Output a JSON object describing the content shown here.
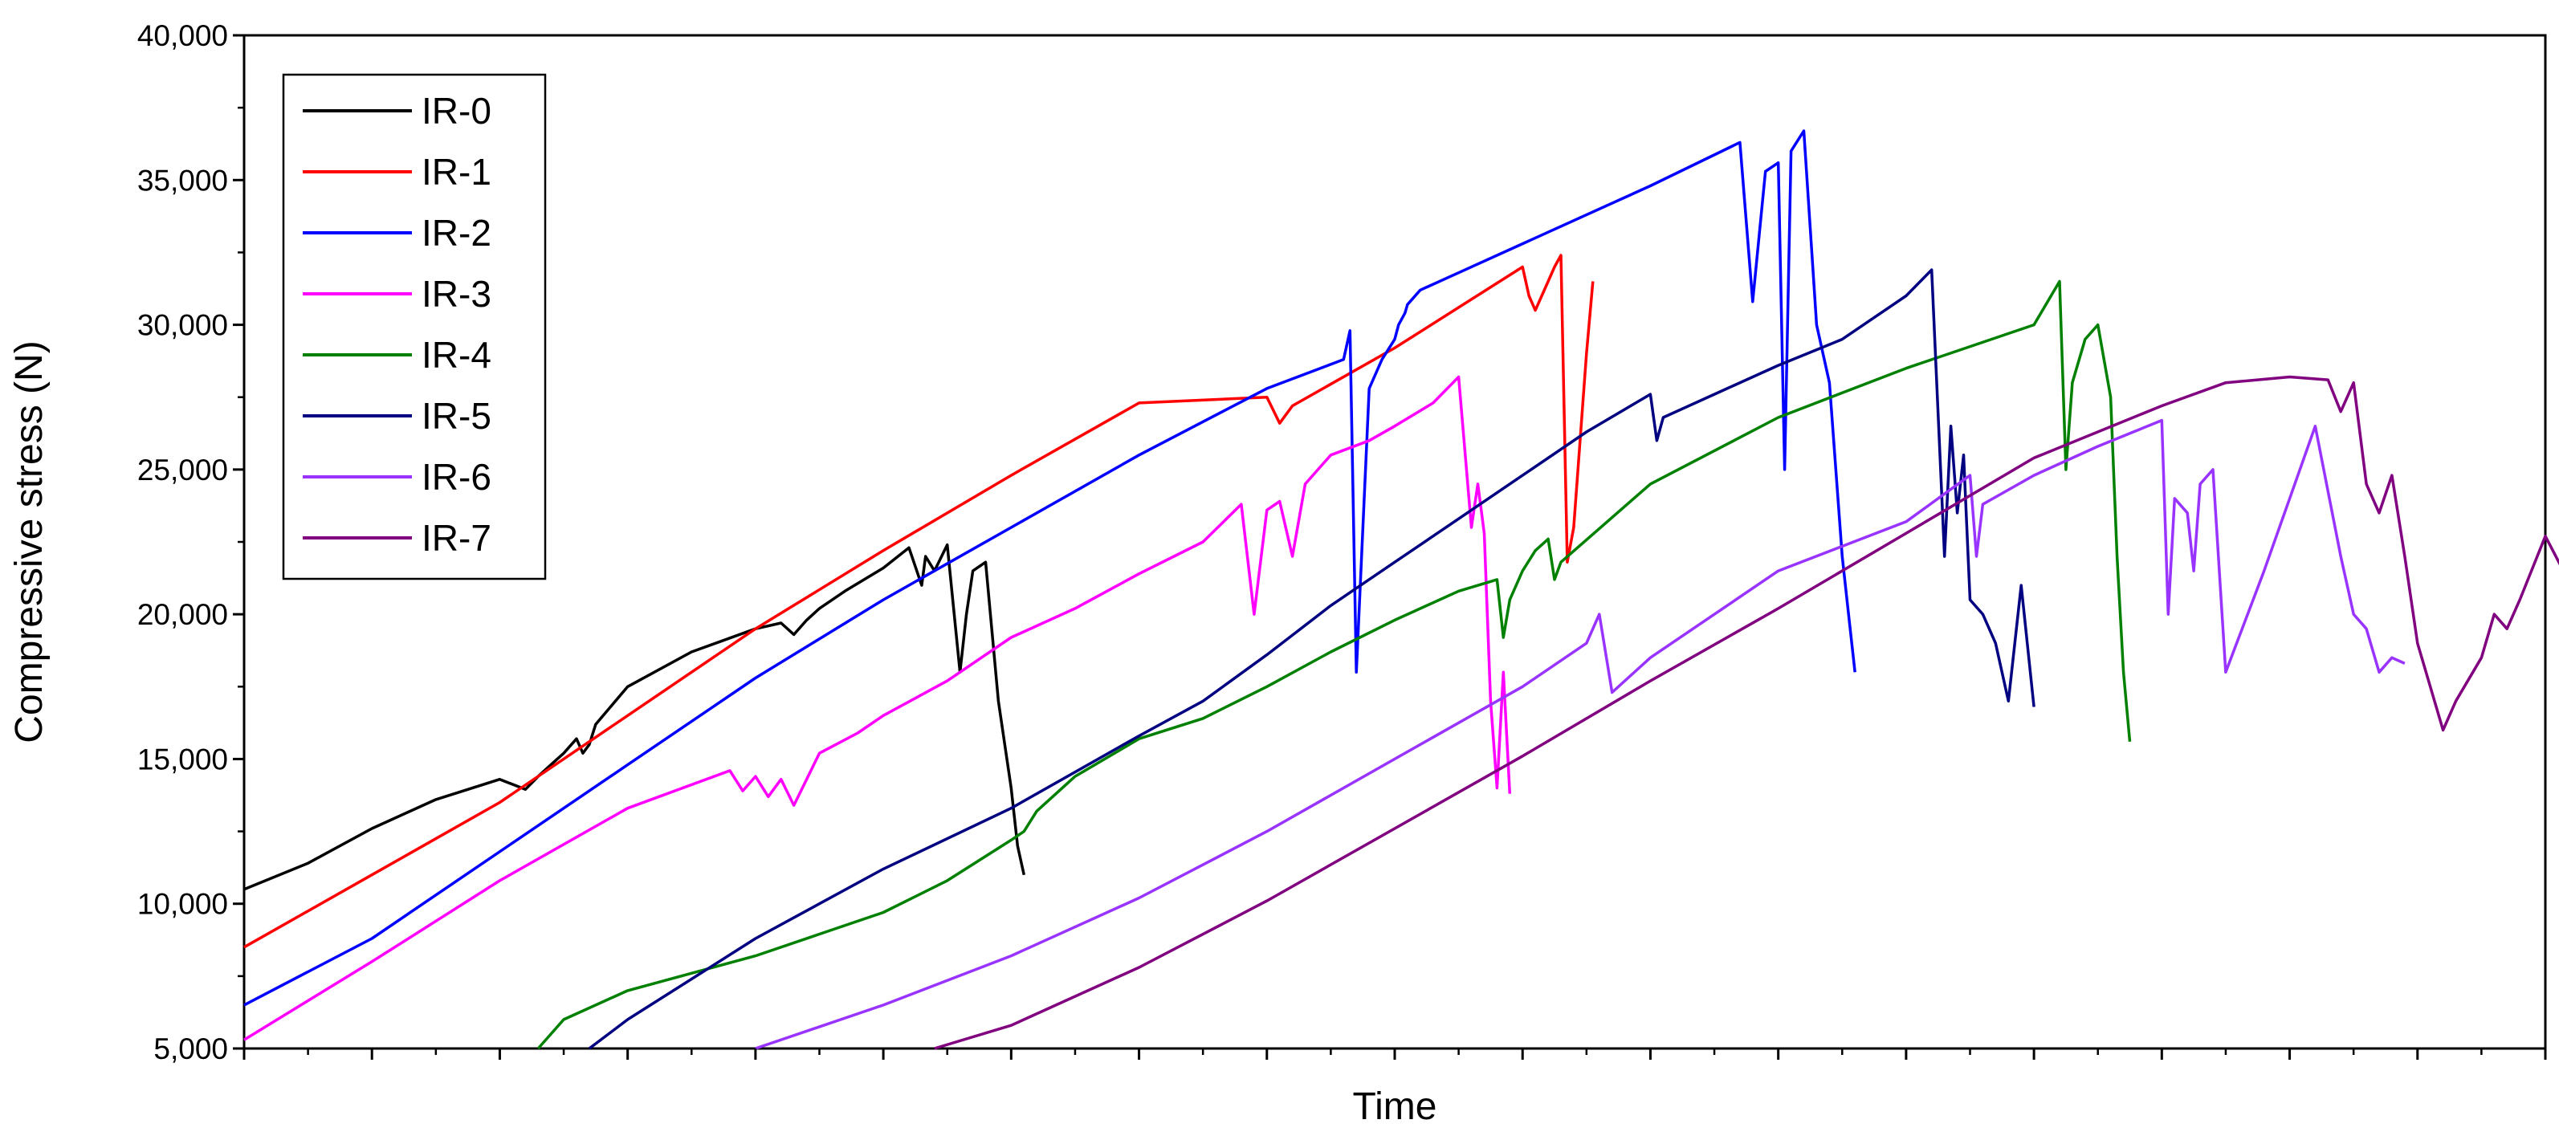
{
  "chart_data": {
    "type": "line",
    "title": "",
    "xlabel": "Time",
    "ylabel": "Compressive stress (N)",
    "xlim": [
      0,
      180
    ],
    "ylim": [
      5000,
      40000
    ],
    "yticks": [
      {
        "value": 5000,
        "label": "5,000"
      },
      {
        "value": 10000,
        "label": "10,000"
      },
      {
        "value": 15000,
        "label": "15,000"
      },
      {
        "value": 20000,
        "label": "20,000"
      },
      {
        "value": 25000,
        "label": "25,000"
      },
      {
        "value": 30000,
        "label": "30,000"
      },
      {
        "value": 35000,
        "label": "35,000"
      },
      {
        "value": 40000,
        "label": "40,000"
      }
    ],
    "xticks_count": 36,
    "grid": false,
    "legend_position": "top-left",
    "series": [
      {
        "name": "IR-0",
        "color": "#000000",
        "x": [
          0,
          5,
          10,
          15,
          20,
          22,
          23,
          24,
          25,
          26,
          26.5,
          27,
          27.5,
          30,
          35,
          40,
          42,
          43,
          44,
          45,
          47,
          50,
          52,
          53,
          53.3,
          54,
          55,
          56,
          56.5,
          57,
          58,
          59,
          60,
          60.5,
          61
        ],
        "y": [
          10500,
          11400,
          12600,
          13600,
          14300,
          13950,
          14400,
          14800,
          15200,
          15700,
          15200,
          15500,
          16200,
          17500,
          18700,
          19500,
          19700,
          19300,
          19800,
          20200,
          20800,
          21600,
          22300,
          21000,
          22000,
          21500,
          22400,
          18000,
          20000,
          21500,
          21800,
          17000,
          14000,
          12000,
          11000
        ]
      },
      {
        "name": "IR-1",
        "color": "#ff0000",
        "x": [
          0,
          10,
          20,
          30,
          40,
          50,
          60,
          70,
          80,
          81,
          82,
          90,
          100,
          100.5,
          101,
          102,
          102.5,
          103,
          103.5,
          104,
          105,
          105.5
        ],
        "y": [
          8500,
          11000,
          13500,
          16500,
          19500,
          22200,
          24800,
          27300,
          27500,
          26600,
          27200,
          29200,
          32000,
          31000,
          30500,
          31500,
          32000,
          32400,
          21800,
          23000,
          29000,
          31500
        ]
      },
      {
        "name": "IR-2",
        "color": "#0000ff",
        "x": [
          0,
          10,
          20,
          30,
          40,
          50,
          60,
          70,
          80,
          86,
          86.5,
          87,
          88,
          89,
          90,
          90.3,
          90.8,
          91,
          92,
          95,
          100,
          110,
          117,
          118,
          119,
          120,
          120.5,
          121,
          122,
          123,
          124,
          125,
          125.5,
          126
        ],
        "y": [
          6500,
          8800,
          11800,
          14800,
          17800,
          20500,
          23000,
          25500,
          27800,
          28800,
          29800,
          18000,
          27800,
          28800,
          29500,
          30000,
          30400,
          30700,
          31200,
          31800,
          32800,
          34800,
          36300,
          30800,
          35300,
          35600,
          25000,
          36000,
          36700,
          30000,
          28000,
          22000,
          20000,
          18000
        ]
      },
      {
        "name": "IR-3",
        "color": "#ff00ff",
        "x": [
          0,
          10,
          20,
          30,
          38,
          39,
          40,
          41,
          42,
          43,
          44,
          45,
          48,
          50,
          55,
          60,
          65,
          70,
          75,
          78,
          79,
          80,
          81,
          82,
          83,
          85,
          88,
          90,
          93,
          95,
          96,
          96.5,
          97,
          97.5,
          98,
          98.5,
          99
        ],
        "y": [
          5300,
          8000,
          10800,
          13300,
          14600,
          13900,
          14400,
          13700,
          14300,
          13400,
          14300,
          15200,
          15900,
          16500,
          17700,
          19200,
          20200,
          21400,
          22500,
          23800,
          20000,
          23600,
          23900,
          22000,
          24500,
          25500,
          26000,
          26500,
          27300,
          28200,
          23000,
          24500,
          22800,
          17000,
          14000,
          18000,
          13800
        ]
      },
      {
        "name": "IR-4",
        "color": "#008000",
        "x": [
          23,
          25,
          30,
          40,
          50,
          55,
          60,
          61,
          62,
          65,
          70,
          75,
          80,
          85,
          90,
          95,
          98,
          98.5,
          99,
          100,
          101,
          102,
          102.5,
          103,
          110,
          120,
          130,
          140,
          142,
          142.5,
          143,
          144,
          145,
          146,
          146.5,
          147,
          147.5
        ],
        "y": [
          5000,
          6000,
          7000,
          8200,
          9700,
          10800,
          12200,
          12500,
          13200,
          14400,
          15700,
          16400,
          17500,
          18700,
          19800,
          20800,
          21200,
          19200,
          20500,
          21500,
          22200,
          22600,
          21200,
          21800,
          24500,
          26800,
          28500,
          30000,
          31500,
          25000,
          28000,
          29500,
          30000,
          27500,
          22000,
          18000,
          15600
        ]
      },
      {
        "name": "IR-5",
        "color": "#000080",
        "x": [
          27,
          30,
          40,
          50,
          60,
          70,
          75,
          80,
          85,
          90,
          95,
          100,
          105,
          110,
          110.5,
          111,
          115,
          120,
          125,
          130,
          132,
          133,
          133.5,
          134,
          134.5,
          135,
          136,
          137,
          138,
          139,
          140
        ],
        "y": [
          5000,
          6000,
          8800,
          11200,
          13300,
          15800,
          17000,
          18600,
          20300,
          21800,
          23300,
          24800,
          26300,
          27600,
          26000,
          26800,
          27600,
          28600,
          29500,
          31000,
          31900,
          22000,
          26500,
          23500,
          25500,
          20500,
          20000,
          19000,
          17000,
          21000,
          16800
        ]
      },
      {
        "name": "IR-6",
        "color": "#9933ff",
        "x": [
          40,
          50,
          60,
          70,
          80,
          90,
          100,
          105,
          106,
          107,
          110,
          120,
          130,
          135,
          135.5,
          136,
          140,
          145,
          150,
          150.5,
          151,
          152,
          152.5,
          153,
          154,
          155,
          158,
          160,
          162,
          164,
          165,
          166,
          167,
          168,
          169
        ],
        "y": [
          5000,
          6500,
          8200,
          10200,
          12500,
          15000,
          17500,
          19000,
          20000,
          17300,
          18500,
          21500,
          23200,
          24800,
          22000,
          23800,
          24800,
          25800,
          26700,
          20000,
          24000,
          23500,
          21500,
          24500,
          25000,
          18000,
          21500,
          24000,
          26500,
          22000,
          20000,
          19500,
          18000,
          18500,
          18300
        ]
      },
      {
        "name": "IR-7",
        "color": "#800080",
        "x": [
          54,
          60,
          70,
          80,
          90,
          100,
          110,
          120,
          130,
          140,
          150,
          155,
          160,
          163,
          164,
          165,
          166,
          167,
          168,
          169,
          170,
          172,
          173,
          175,
          176,
          177,
          178,
          180,
          182,
          183,
          184
        ],
        "y": [
          5000,
          5800,
          7800,
          10100,
          12600,
          15100,
          17700,
          20200,
          22800,
          25400,
          27200,
          28000,
          28200,
          28100,
          27000,
          28000,
          24500,
          23500,
          24800,
          22000,
          19000,
          16000,
          17000,
          18500,
          20000,
          19500,
          20500,
          22700,
          21000,
          20000,
          20000
        ]
      }
    ]
  }
}
